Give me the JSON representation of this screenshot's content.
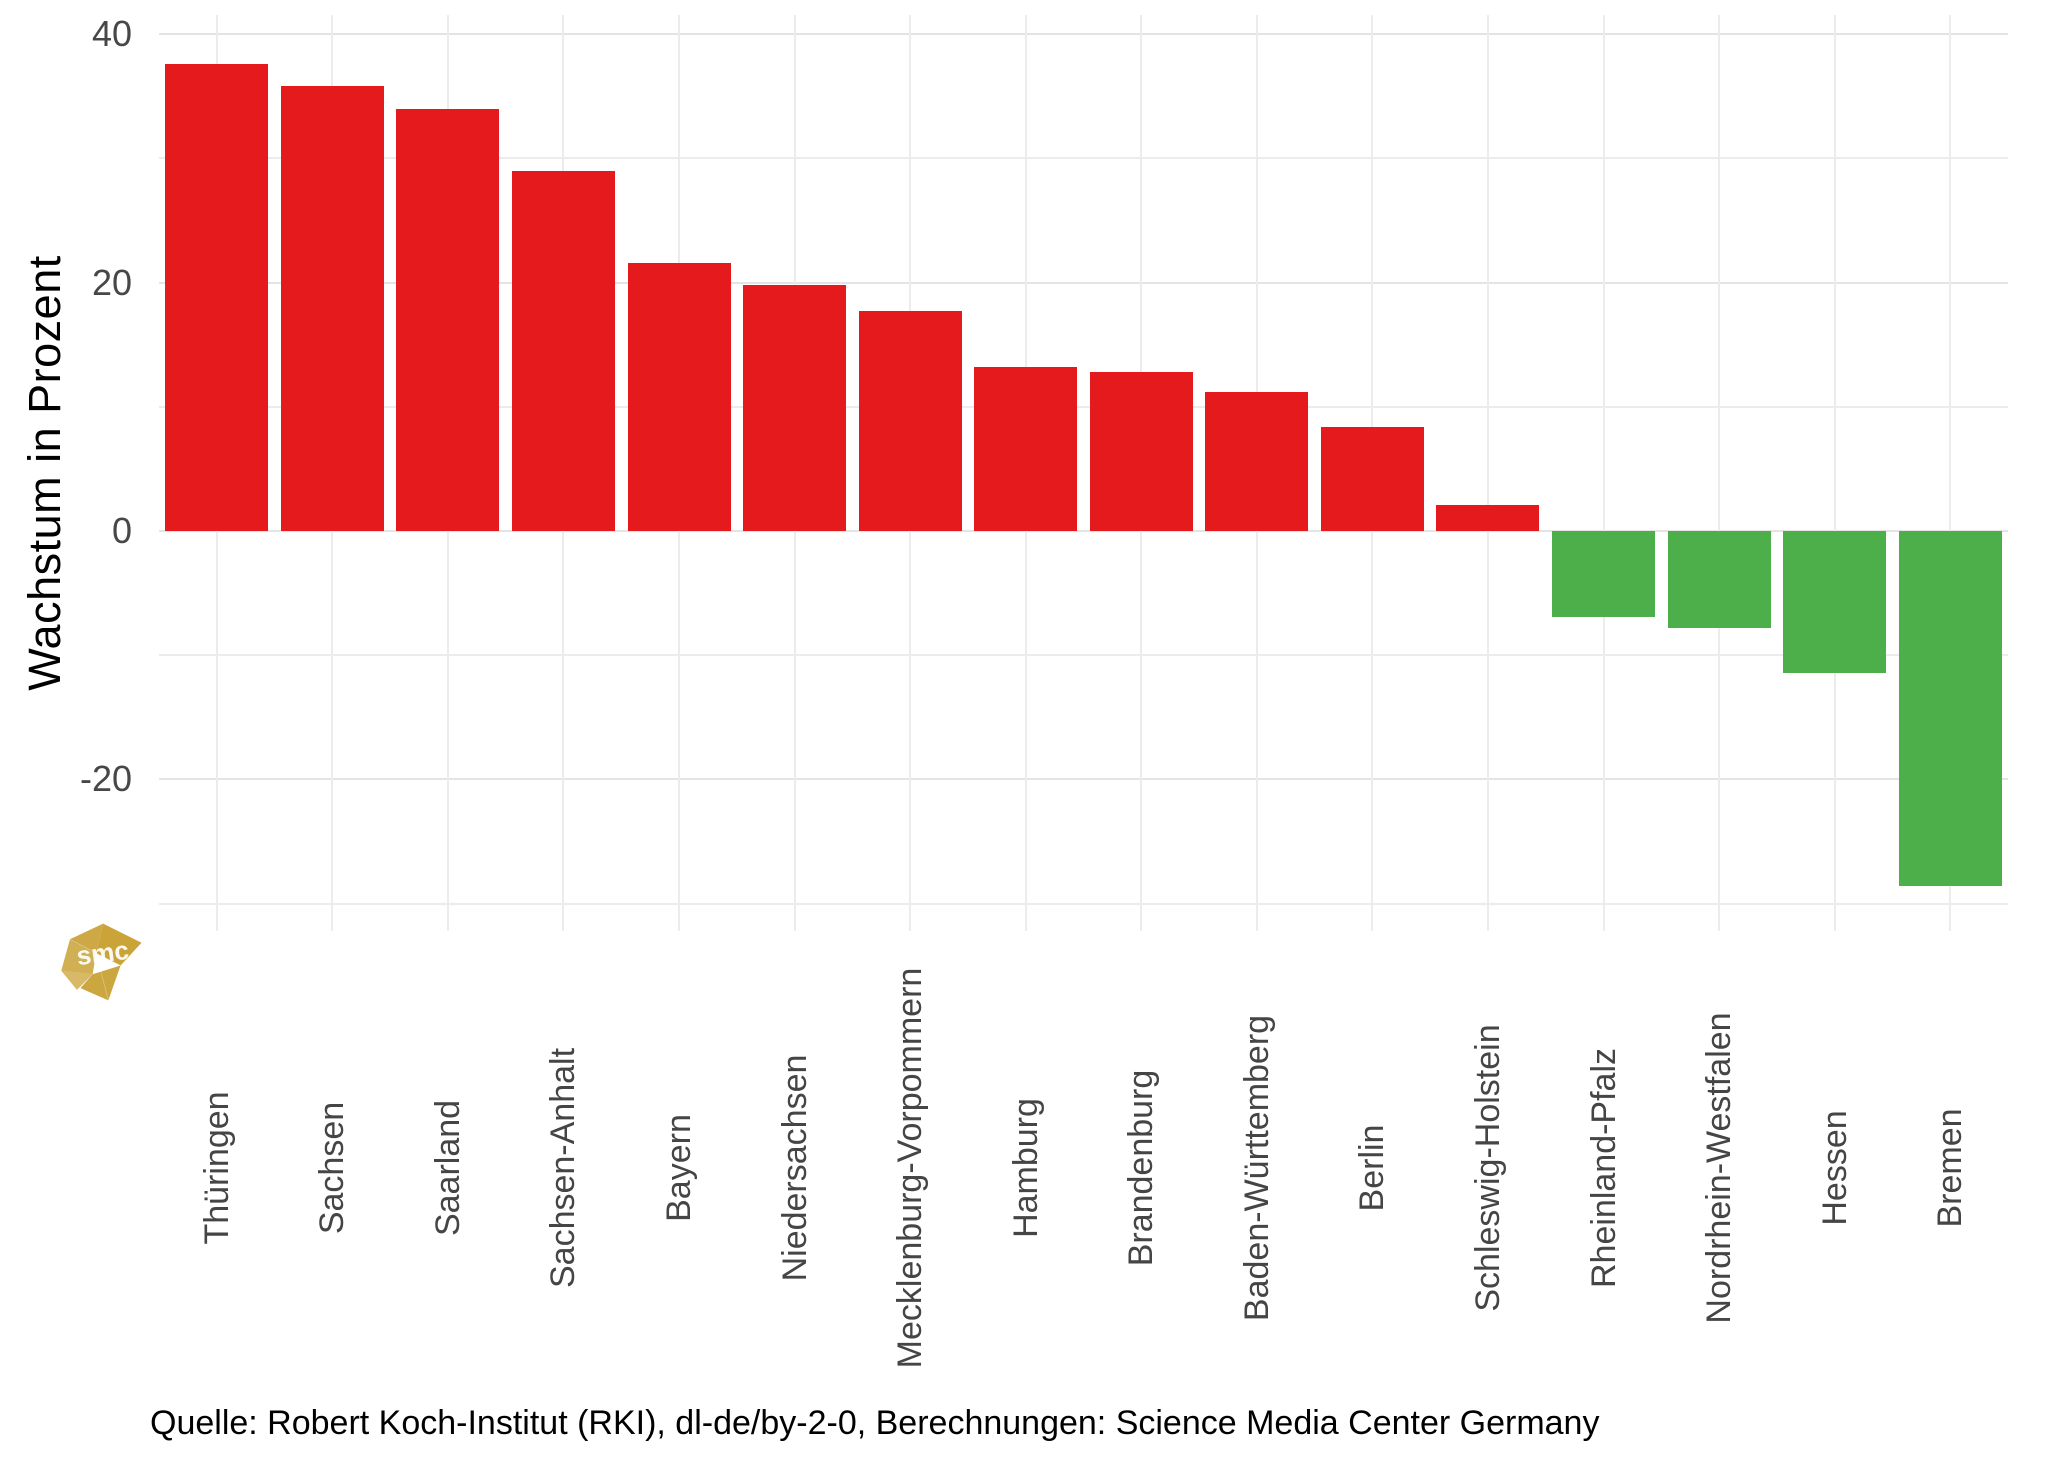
{
  "chart_data": {
    "type": "bar",
    "title": "",
    "xlabel": "",
    "ylabel": "Wachstum in Prozent",
    "categories": [
      "Thüringen",
      "Sachsen",
      "Saarland",
      "Sachsen-Anhalt",
      "Bayern",
      "Niedersachsen",
      "Mecklenburg-Vorpommern",
      "Hamburg",
      "Brandenburg",
      "Baden-Württemberg",
      "Berlin",
      "Schleswig-Holstein",
      "Rheinland-Pfalz",
      "Nordrhein-Westfalen",
      "Hessen",
      "Bremen"
    ],
    "values": [
      37.6,
      35.8,
      34.0,
      29.0,
      21.6,
      19.8,
      17.7,
      13.2,
      12.8,
      11.2,
      8.4,
      2.1,
      -6.9,
      -7.8,
      -11.4,
      -28.6
    ],
    "ylim": [
      -32.2,
      41.5
    ],
    "grid": true,
    "legend": false,
    "bar_color_positive": "#e41a1c",
    "bar_color_negative": "#4daf4a"
  },
  "y_axis": {
    "title": "Wachstum in Prozent",
    "ticks": [
      {
        "value": 40,
        "label": "40"
      },
      {
        "value": 20,
        "label": "20"
      },
      {
        "value": 0,
        "label": "0"
      },
      {
        "value": -20,
        "label": "-20"
      }
    ],
    "major_gridlines": [
      40,
      20,
      0,
      -20
    ],
    "minor_gridlines": [
      30,
      10,
      -10,
      -30
    ]
  },
  "caption": {
    "text": "Quelle: Robert Koch-Institut (RKI), dl-de/by-2-0, Berechnungen: Science Media Center Germany"
  },
  "logo": {
    "text": "smc",
    "color": "#c9a135"
  },
  "colors": {
    "positive_bar": "#e41a1c",
    "negative_bar": "#4daf4a",
    "gridline_major": "#e4e4e4",
    "gridline_minor": "#ececec",
    "axis_text": "#474747",
    "caption_text": "#000000",
    "background": "#ffffff"
  }
}
